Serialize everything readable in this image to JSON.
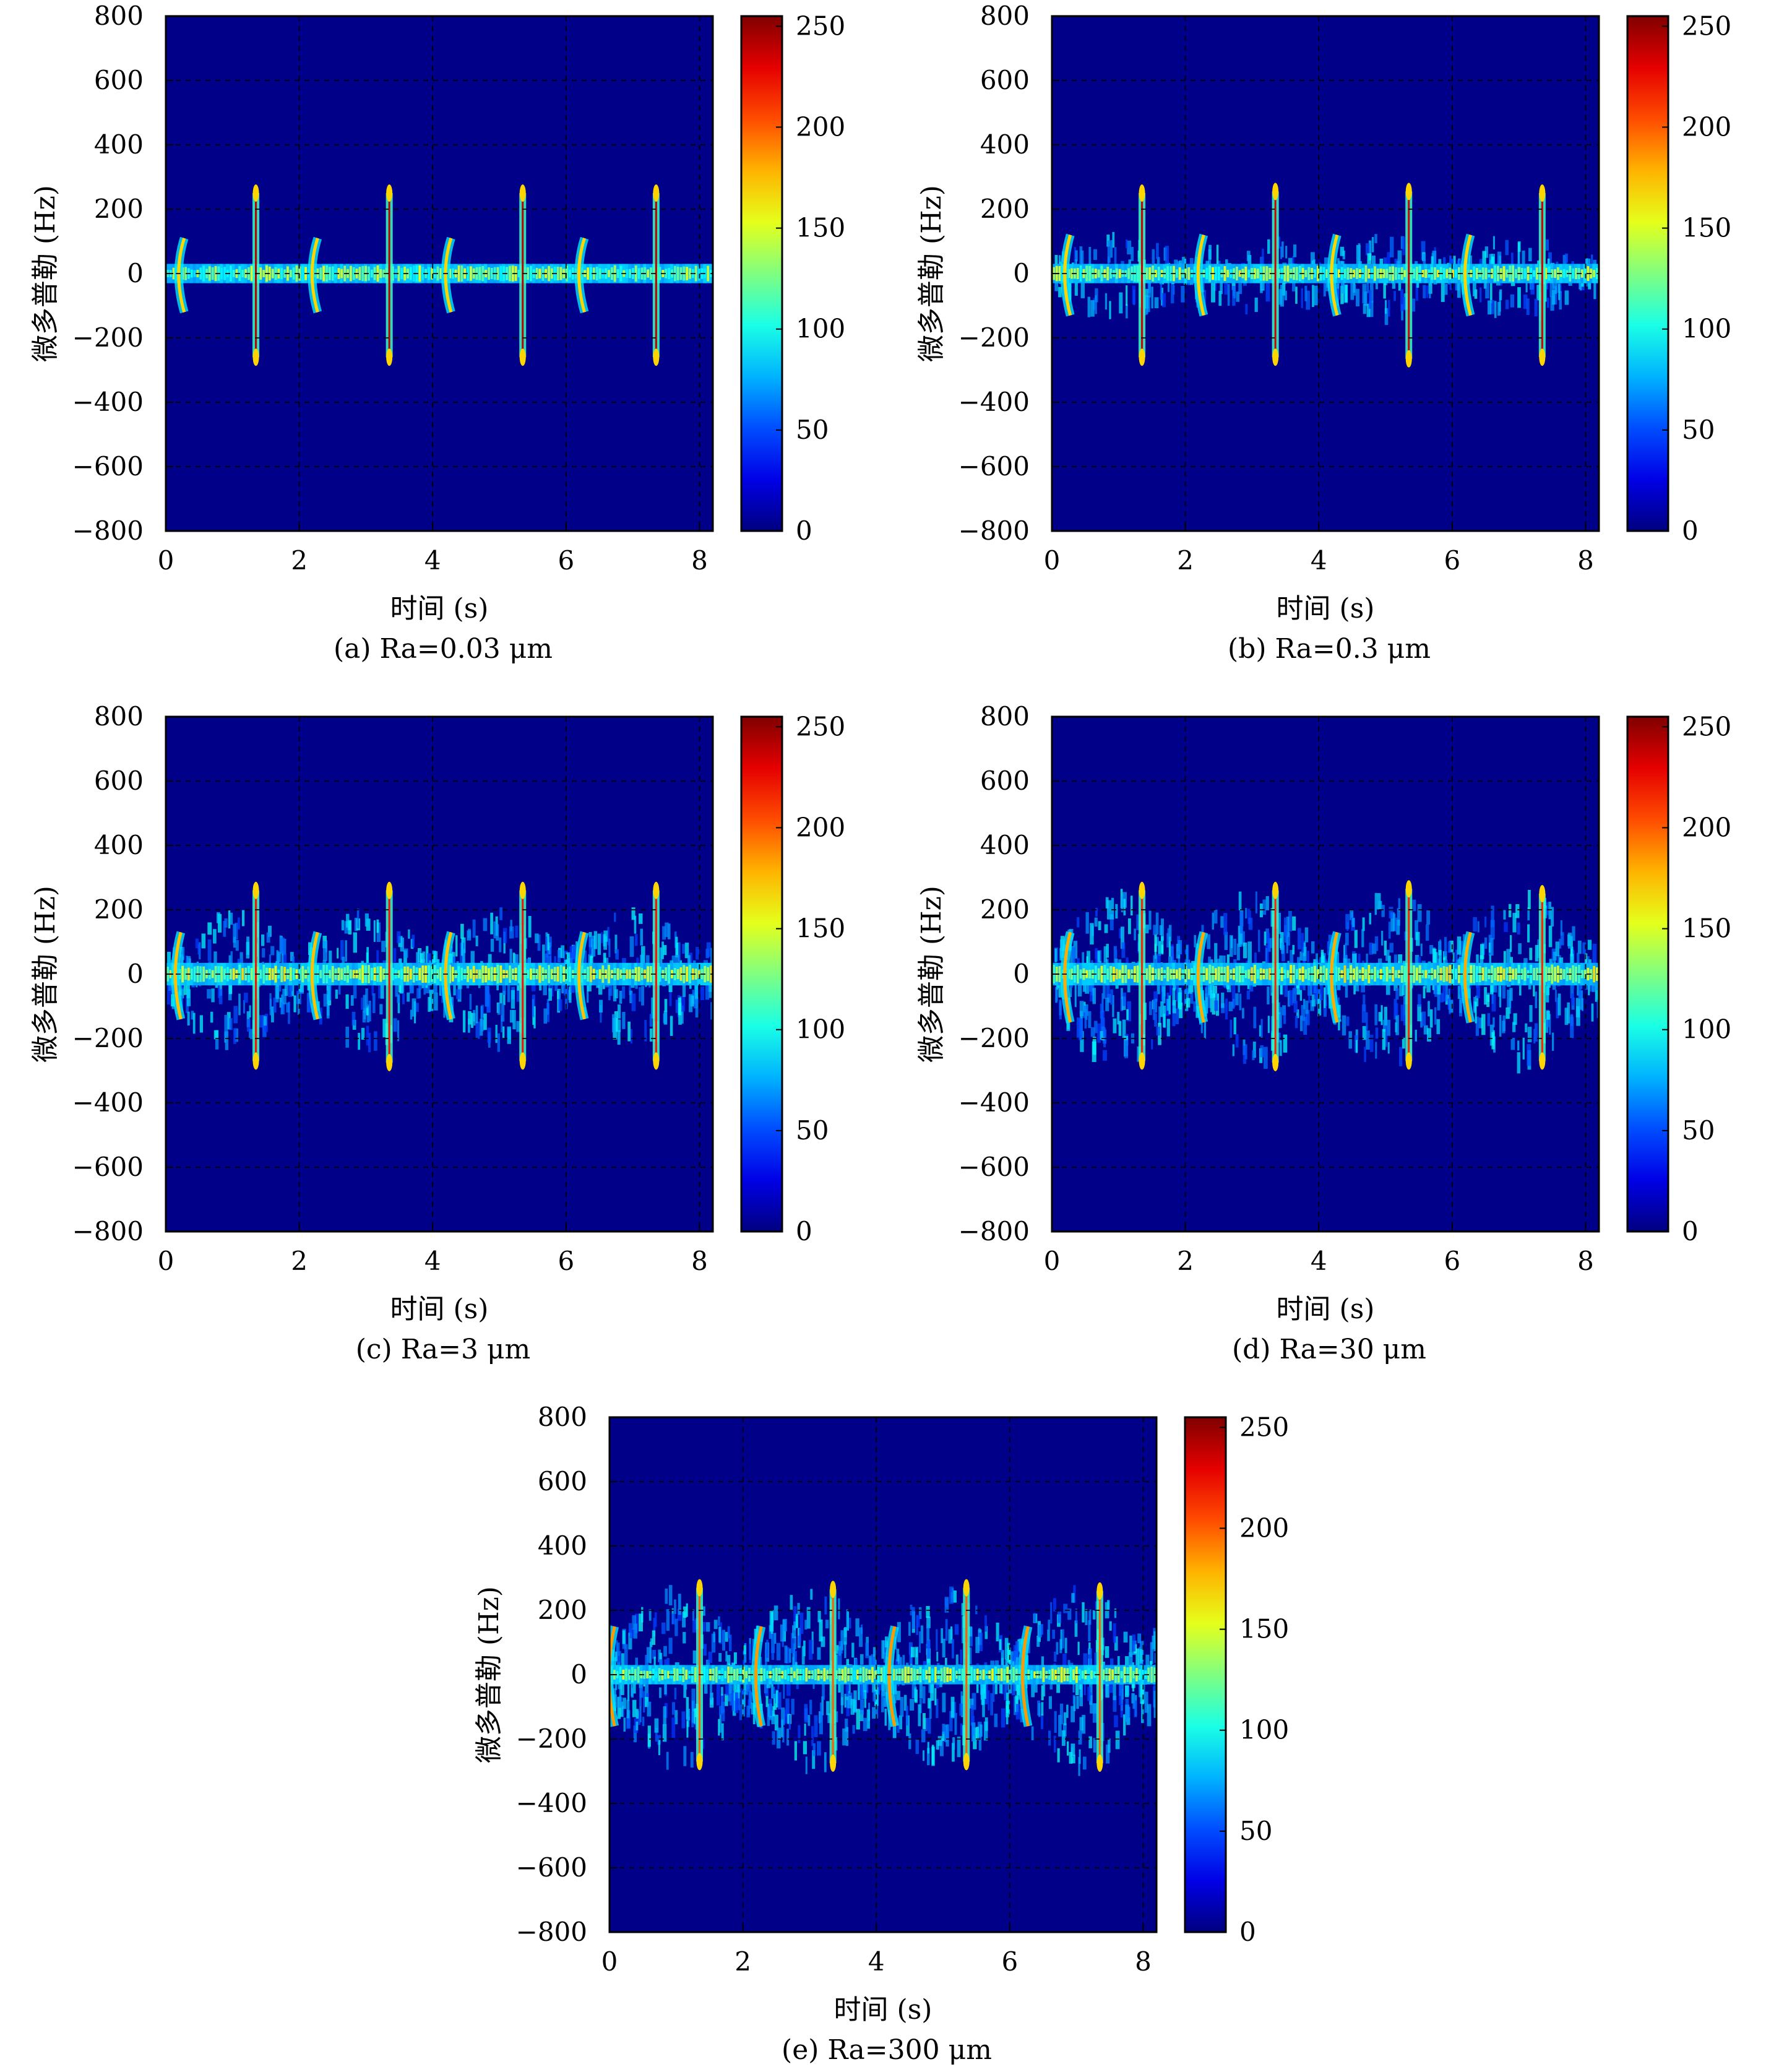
{
  "figure": {
    "x_label": "时间 (s)",
    "y_label": "微多普勒 (Hz)",
    "x_ticks": [
      "0",
      "2",
      "4",
      "6",
      "8"
    ],
    "y_ticks": [
      "800",
      "600",
      "400",
      "200",
      "0",
      "−200",
      "−400",
      "−600",
      "−800"
    ],
    "colorbar_ticks": [
      "250",
      "200",
      "150",
      "100",
      "50",
      "0"
    ]
  },
  "chart_data": [
    {
      "type": "heatmap",
      "caption": "(a) Ra=0.03 μm",
      "xlabel": "时间 (s)",
      "ylabel": "微多普勒 (Hz)",
      "xlim": [
        0,
        8.2
      ],
      "ylim": [
        -800,
        800
      ],
      "clim": [
        0,
        255
      ],
      "colormap": "jet",
      "grid": true,
      "x_ticks": [
        0,
        2,
        4,
        6,
        8
      ],
      "y_ticks": [
        -800,
        -600,
        -400,
        -200,
        0,
        200,
        400,
        600,
        800
      ],
      "colorbar_ticks": [
        0,
        50,
        100,
        150,
        200,
        250
      ],
      "baseline": {
        "freq_hz": 0,
        "halfwidth_hz": 30,
        "intensity": 150
      },
      "spikes": [
        {
          "t": 1.35,
          "f_max": 250,
          "f_min": -260,
          "intensity": 240
        },
        {
          "t": 3.35,
          "f_max": 250,
          "f_min": -260,
          "intensity": 240
        },
        {
          "t": 5.35,
          "f_max": 250,
          "f_min": -260,
          "intensity": 240
        },
        {
          "t": 7.35,
          "f_max": 250,
          "f_min": -260,
          "intensity": 240
        }
      ],
      "arcs": [
        {
          "t": 0.35,
          "f_max": 110,
          "f_min": -120,
          "intensity": 170
        },
        {
          "t": 2.35,
          "f_max": 110,
          "f_min": -120,
          "intensity": 170
        },
        {
          "t": 4.35,
          "f_max": 110,
          "f_min": -120,
          "intensity": 170
        },
        {
          "t": 6.35,
          "f_max": 110,
          "f_min": -120,
          "intensity": 170
        }
      ],
      "spread_hz": 0
    },
    {
      "type": "heatmap",
      "caption": "(b) Ra=0.3 μm",
      "xlabel": "时间 (s)",
      "ylabel": "微多普勒 (Hz)",
      "xlim": [
        0,
        8.2
      ],
      "ylim": [
        -800,
        800
      ],
      "clim": [
        0,
        255
      ],
      "colormap": "jet",
      "grid": true,
      "x_ticks": [
        0,
        2,
        4,
        6,
        8
      ],
      "y_ticks": [
        -800,
        -600,
        -400,
        -200,
        0,
        200,
        400,
        600,
        800
      ],
      "colorbar_ticks": [
        0,
        50,
        100,
        150,
        200,
        250
      ],
      "baseline": {
        "freq_hz": 0,
        "halfwidth_hz": 30,
        "intensity": 155
      },
      "spikes": [
        {
          "t": 1.35,
          "f_max": 250,
          "f_min": -260,
          "intensity": 235
        },
        {
          "t": 3.35,
          "f_max": 255,
          "f_min": -260,
          "intensity": 235
        },
        {
          "t": 5.35,
          "f_max": 255,
          "f_min": -265,
          "intensity": 235
        },
        {
          "t": 7.35,
          "f_max": 250,
          "f_min": -260,
          "intensity": 235
        }
      ],
      "arcs": [
        {
          "t": 0.35,
          "f_max": 120,
          "f_min": -130,
          "intensity": 170
        },
        {
          "t": 2.35,
          "f_max": 120,
          "f_min": -130,
          "intensity": 170
        },
        {
          "t": 4.35,
          "f_max": 120,
          "f_min": -130,
          "intensity": 170
        },
        {
          "t": 6.35,
          "f_max": 120,
          "f_min": -130,
          "intensity": 170
        }
      ],
      "spread_hz": 120
    },
    {
      "type": "heatmap",
      "caption": "(c) Ra=3 μm",
      "xlabel": "时间 (s)",
      "ylabel": "微多普勒 (Hz)",
      "xlim": [
        0,
        8.2
      ],
      "ylim": [
        -800,
        800
      ],
      "clim": [
        0,
        255
      ],
      "colormap": "jet",
      "grid": true,
      "x_ticks": [
        0,
        2,
        4,
        6,
        8
      ],
      "y_ticks": [
        -800,
        -600,
        -400,
        -200,
        0,
        200,
        400,
        600,
        800
      ],
      "colorbar_ticks": [
        0,
        50,
        100,
        150,
        200,
        250
      ],
      "baseline": {
        "freq_hz": 0,
        "halfwidth_hz": 35,
        "intensity": 160
      },
      "spikes": [
        {
          "t": 1.35,
          "f_max": 260,
          "f_min": -270,
          "intensity": 220
        },
        {
          "t": 3.35,
          "f_max": 260,
          "f_min": -275,
          "intensity": 220
        },
        {
          "t": 5.35,
          "f_max": 260,
          "f_min": -270,
          "intensity": 220
        },
        {
          "t": 7.35,
          "f_max": 260,
          "f_min": -270,
          "intensity": 220
        }
      ],
      "arcs": [
        {
          "t": 0.3,
          "f_max": 130,
          "f_min": -140,
          "intensity": 175
        },
        {
          "t": 2.35,
          "f_max": 130,
          "f_min": -140,
          "intensity": 175
        },
        {
          "t": 4.35,
          "f_max": 130,
          "f_min": -140,
          "intensity": 175
        },
        {
          "t": 6.35,
          "f_max": 130,
          "f_min": -140,
          "intensity": 175
        }
      ],
      "spread_hz": 200
    },
    {
      "type": "heatmap",
      "caption": "(d) Ra=30 μm",
      "xlabel": "时间 (s)",
      "ylabel": "微多普勒 (Hz)",
      "xlim": [
        0,
        8.2
      ],
      "ylim": [
        -800,
        800
      ],
      "clim": [
        0,
        255
      ],
      "colormap": "jet",
      "grid": true,
      "x_ticks": [
        0,
        2,
        4,
        6,
        8
      ],
      "y_ticks": [
        -800,
        -600,
        -400,
        -200,
        0,
        200,
        400,
        600,
        800
      ],
      "colorbar_ticks": [
        0,
        50,
        100,
        150,
        200,
        250
      ],
      "baseline": {
        "freq_hz": 0,
        "halfwidth_hz": 35,
        "intensity": 160
      },
      "spikes": [
        {
          "t": 1.35,
          "f_max": 260,
          "f_min": -270,
          "intensity": 215
        },
        {
          "t": 3.35,
          "f_max": 260,
          "f_min": -275,
          "intensity": 215
        },
        {
          "t": 5.35,
          "f_max": 265,
          "f_min": -270,
          "intensity": 215
        },
        {
          "t": 7.35,
          "f_max": 250,
          "f_min": -270,
          "intensity": 215
        }
      ],
      "arcs": [
        {
          "t": 0.35,
          "f_max": 130,
          "f_min": -150,
          "intensity": 180
        },
        {
          "t": 2.35,
          "f_max": 130,
          "f_min": -150,
          "intensity": 180
        },
        {
          "t": 4.35,
          "f_max": 130,
          "f_min": -150,
          "intensity": 180
        },
        {
          "t": 6.35,
          "f_max": 130,
          "f_min": -150,
          "intensity": 180
        }
      ],
      "spread_hz": 260
    },
    {
      "type": "heatmap",
      "caption": "(e) Ra=300 μm",
      "xlabel": "时间 (s)",
      "ylabel": "微多普勒 (Hz)",
      "xlim": [
        0,
        8.2
      ],
      "ylim": [
        -800,
        800
      ],
      "clim": [
        0,
        255
      ],
      "colormap": "jet",
      "grid": true,
      "x_ticks": [
        0,
        2,
        4,
        6,
        8
      ],
      "y_ticks": [
        -800,
        -600,
        -400,
        -200,
        0,
        200,
        400,
        600,
        800
      ],
      "colorbar_ticks": [
        0,
        50,
        100,
        150,
        200,
        250
      ],
      "baseline": {
        "freq_hz": 0,
        "halfwidth_hz": 30,
        "intensity": 150
      },
      "spikes": [
        {
          "t": 1.35,
          "f_max": 270,
          "f_min": -270,
          "intensity": 200
        },
        {
          "t": 3.35,
          "f_max": 265,
          "f_min": -275,
          "intensity": 200
        },
        {
          "t": 5.35,
          "f_max": 270,
          "f_min": -270,
          "intensity": 200
        },
        {
          "t": 7.35,
          "f_max": 260,
          "f_min": -275,
          "intensity": 200
        }
      ],
      "arcs": [
        {
          "t": 0.15,
          "f_max": 150,
          "f_min": -160,
          "intensity": 185
        },
        {
          "t": 2.35,
          "f_max": 150,
          "f_min": -160,
          "intensity": 185
        },
        {
          "t": 4.35,
          "f_max": 150,
          "f_min": -160,
          "intensity": 185
        },
        {
          "t": 6.35,
          "f_max": 150,
          "f_min": -160,
          "intensity": 185
        }
      ],
      "spread_hz": 270
    }
  ]
}
